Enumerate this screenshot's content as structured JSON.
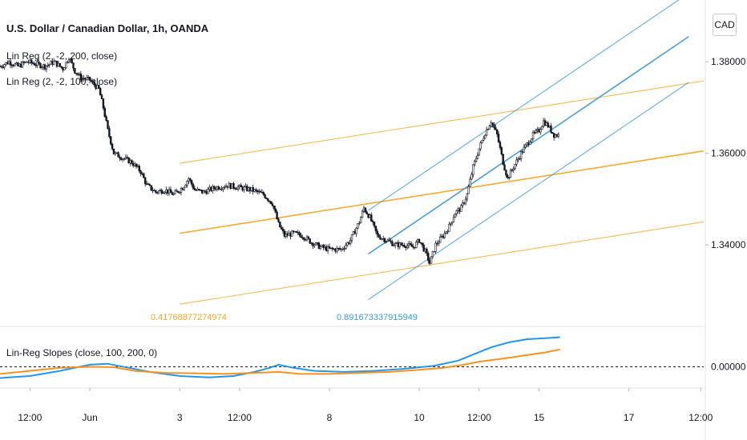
{
  "chart_data": [
    {
      "type": "candlestick",
      "title": "U.S. Dollar / Canadian Dollar, 1h, OANDA",
      "currency_button": "CAD",
      "y_ticks": [
        1.38,
        1.36,
        1.34
      ],
      "y_tick_labels": [
        "1.38000",
        "1.36000",
        "1.34000"
      ],
      "ylim": [
        1.3225,
        1.3935
      ],
      "x_ticks": [
        {
          "label": "12:00",
          "x": 1
        },
        {
          "label": "Jun",
          "x": 3
        },
        {
          "label": "3",
          "x": 6
        },
        {
          "label": "12:00",
          "x": 8
        },
        {
          "label": "8",
          "x": 11
        },
        {
          "label": "10",
          "x": 14
        },
        {
          "label": "12:00",
          "x": 16
        },
        {
          "label": "15",
          "x": 18
        },
        {
          "label": "17",
          "x": 21
        },
        {
          "label": "12:00",
          "x": 23.4
        }
      ],
      "xlim": [
        0,
        23.5
      ],
      "legend": [
        "Lin Reg (2, -2, 200, close)",
        "Lin Reg (2, -2, 100, close)"
      ],
      "close_path": [
        [
          0.0,
          1.379
        ],
        [
          0.3,
          1.38
        ],
        [
          0.6,
          1.379
        ],
        [
          0.9,
          1.38
        ],
        [
          1.2,
          1.3795
        ],
        [
          1.5,
          1.379
        ],
        [
          1.8,
          1.38
        ],
        [
          2.1,
          1.3785
        ],
        [
          2.3,
          1.381
        ],
        [
          2.5,
          1.378
        ],
        [
          2.7,
          1.3765
        ],
        [
          3.0,
          1.376
        ],
        [
          3.3,
          1.374
        ],
        [
          3.45,
          1.37
        ],
        [
          3.6,
          1.365
        ],
        [
          3.8,
          1.36
        ],
        [
          4.1,
          1.359
        ],
        [
          4.4,
          1.358
        ],
        [
          4.7,
          1.356
        ],
        [
          4.9,
          1.353
        ],
        [
          5.2,
          1.3515
        ],
        [
          5.5,
          1.352
        ],
        [
          5.8,
          1.351
        ],
        [
          6.1,
          1.3525
        ],
        [
          6.3,
          1.3545
        ],
        [
          6.5,
          1.352
        ],
        [
          6.8,
          1.3515
        ],
        [
          7.2,
          1.3525
        ],
        [
          7.6,
          1.353
        ],
        [
          8.0,
          1.3525
        ],
        [
          8.4,
          1.352
        ],
        [
          8.8,
          1.351
        ],
        [
          9.1,
          1.349
        ],
        [
          9.3,
          1.3445
        ],
        [
          9.5,
          1.342
        ],
        [
          9.8,
          1.3425
        ],
        [
          10.1,
          1.342
        ],
        [
          10.4,
          1.3405
        ],
        [
          10.7,
          1.3395
        ],
        [
          11.0,
          1.339
        ],
        [
          11.4,
          1.339
        ],
        [
          11.7,
          1.341
        ],
        [
          12.0,
          1.345
        ],
        [
          12.15,
          1.348
        ],
        [
          12.35,
          1.346
        ],
        [
          12.6,
          1.342
        ],
        [
          12.9,
          1.341
        ],
        [
          13.2,
          1.34
        ],
        [
          13.5,
          1.34
        ],
        [
          13.8,
          1.3395
        ],
        [
          14.0,
          1.341
        ],
        [
          14.2,
          1.3385
        ],
        [
          14.35,
          1.336
        ],
        [
          14.55,
          1.34
        ],
        [
          14.8,
          1.342
        ],
        [
          15.0,
          1.344
        ],
        [
          15.2,
          1.347
        ],
        [
          15.4,
          1.348
        ],
        [
          15.6,
          1.351
        ],
        [
          15.8,
          1.357
        ],
        [
          16.0,
          1.361
        ],
        [
          16.2,
          1.3645
        ],
        [
          16.4,
          1.367
        ],
        [
          16.6,
          1.364
        ],
        [
          16.8,
          1.358
        ],
        [
          16.95,
          1.3545
        ],
        [
          17.15,
          1.357
        ],
        [
          17.4,
          1.36
        ],
        [
          17.6,
          1.362
        ],
        [
          17.8,
          1.364
        ],
        [
          18.0,
          1.365
        ],
        [
          18.15,
          1.367
        ],
        [
          18.3,
          1.366
        ],
        [
          18.5,
          1.364
        ],
        [
          18.7,
          1.364
        ]
      ],
      "regression_200": {
        "color": "#f5a623",
        "x_range": [
          6,
          23.5
        ],
        "upper": [
          1.3578,
          1.3758
        ],
        "mid": [
          1.3425,
          1.3605
        ],
        "lower": [
          1.327,
          1.345
        ],
        "slope_label": "0.41768877274974"
      },
      "regression_100": {
        "color": "#3c9ad8",
        "x_range": [
          12.3,
          23.0
        ],
        "upper": [
          1.3475,
          1.395
        ],
        "mid": [
          1.338,
          1.3855
        ],
        "lower": [
          1.328,
          1.3755
        ],
        "slope_label": "0.891673337915949"
      }
    },
    {
      "type": "line",
      "title": "Lin-Reg Slopes (close, 100, 200, 0)",
      "y_ticks": [
        0
      ],
      "y_tick_labels": [
        "0.00000"
      ],
      "ylim": [
        -1,
        1.9
      ],
      "zero_line": "dashed",
      "series": [
        {
          "color": "#2196f3",
          "values": [
            [
              0.0,
              -0.55
            ],
            [
              1.0,
              -0.45
            ],
            [
              2.0,
              -0.2
            ],
            [
              3.0,
              0.1
            ],
            [
              3.6,
              0.15
            ],
            [
              4.3,
              -0.05
            ],
            [
              5.0,
              -0.25
            ],
            [
              6.0,
              -0.45
            ],
            [
              7.0,
              -0.52
            ],
            [
              7.8,
              -0.45
            ],
            [
              8.5,
              -0.25
            ],
            [
              9.0,
              -0.05
            ],
            [
              9.3,
              0.1
            ],
            [
              9.8,
              -0.05
            ],
            [
              10.5,
              -0.2
            ],
            [
              11.5,
              -0.25
            ],
            [
              12.5,
              -0.2
            ],
            [
              13.5,
              -0.1
            ],
            [
              14.5,
              0.05
            ],
            [
              15.3,
              0.3
            ],
            [
              15.8,
              0.6
            ],
            [
              16.4,
              0.95
            ],
            [
              17.0,
              1.2
            ],
            [
              17.6,
              1.35
            ],
            [
              18.2,
              1.4
            ],
            [
              18.7,
              1.45
            ]
          ]
        },
        {
          "color": "#f7931a",
          "values": [
            [
              0.0,
              -0.35
            ],
            [
              1.0,
              -0.2
            ],
            [
              2.0,
              -0.05
            ],
            [
              3.0,
              0.0
            ],
            [
              3.8,
              -0.02
            ],
            [
              4.5,
              -0.2
            ],
            [
              5.5,
              -0.3
            ],
            [
              6.5,
              -0.32
            ],
            [
              7.5,
              -0.35
            ],
            [
              8.5,
              -0.3
            ],
            [
              9.3,
              -0.25
            ],
            [
              10.0,
              -0.35
            ],
            [
              11.0,
              -0.35
            ],
            [
              12.0,
              -0.3
            ],
            [
              13.0,
              -0.25
            ],
            [
              14.0,
              -0.15
            ],
            [
              14.8,
              -0.05
            ],
            [
              15.5,
              0.1
            ],
            [
              16.0,
              0.25
            ],
            [
              16.8,
              0.4
            ],
            [
              17.5,
              0.55
            ],
            [
              18.2,
              0.7
            ],
            [
              18.7,
              0.85
            ]
          ]
        }
      ]
    }
  ]
}
